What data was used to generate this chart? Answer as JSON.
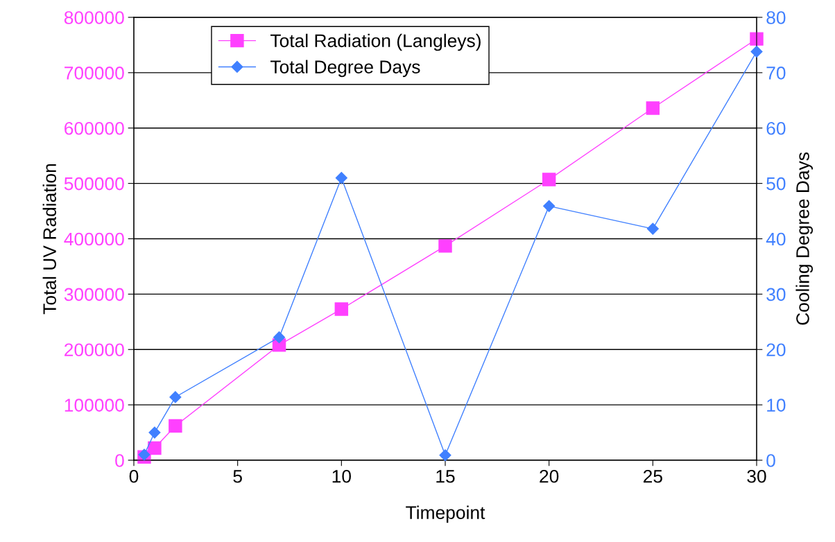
{
  "chart_data": {
    "type": "line",
    "xlabel": "Timepoint",
    "ylabel": "Total UV Radiation",
    "y2label": "Cooling Degree Days",
    "x": [
      0.5,
      1,
      2,
      7,
      10,
      15,
      20,
      25,
      30
    ],
    "series": [
      {
        "name": "Total Radiation (Langleys)",
        "color": "#ff40ff",
        "marker": "square",
        "values": [
          6000,
          22000,
          62000,
          208000,
          273000,
          387000,
          507000,
          636000,
          761000
        ]
      },
      {
        "name": "Total Degree Days",
        "color": "#4080ff",
        "marker": "diamond",
        "axis": "y2",
        "values": [
          1.0,
          5.0,
          11.4,
          22.2,
          51.0,
          0.9,
          45.9,
          41.8,
          73.8
        ]
      }
    ],
    "xlim": [
      0,
      30
    ],
    "xticks": [
      0,
      5,
      10,
      15,
      20,
      25,
      30
    ],
    "ylim": [
      0,
      800000
    ],
    "yticks": [
      0,
      100000,
      200000,
      300000,
      400000,
      500000,
      600000,
      700000,
      800000
    ],
    "y2lim": [
      0,
      80
    ],
    "y2ticks": [
      0,
      10,
      20,
      30,
      40,
      50,
      60,
      70,
      80
    ],
    "grid": "y",
    "legend": "top left",
    "line_style": "solid"
  }
}
